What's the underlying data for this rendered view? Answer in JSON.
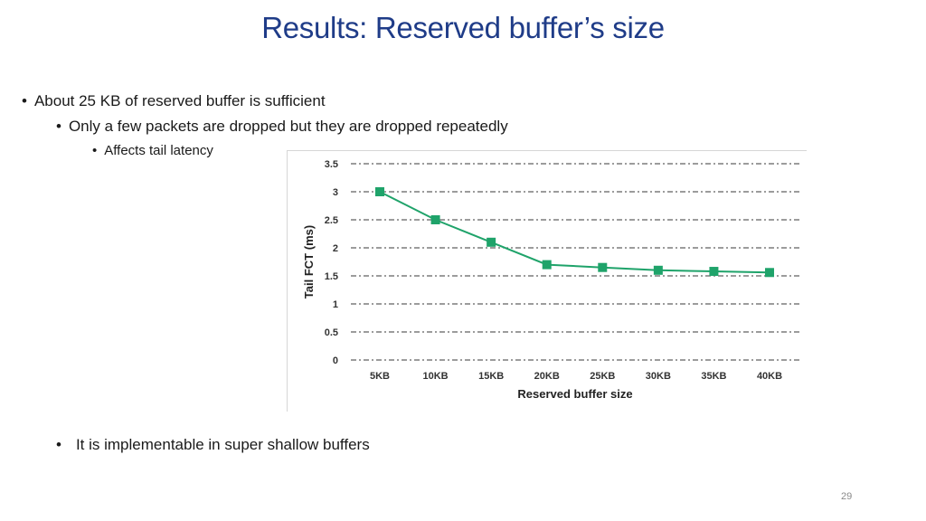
{
  "slide": {
    "title": "Results: Reserved buffer’s size",
    "page_number": "29"
  },
  "bullets": {
    "marker": "•",
    "level1": "About 25 KB of reserved buffer is sufficient",
    "level2": "Only a few packets are dropped but they are dropped repeatedly",
    "level3": "Affects tail latency",
    "bottom": "It is implementable in super shallow buffers"
  },
  "chart_data": {
    "type": "line",
    "categories": [
      "5KB",
      "10KB",
      "15KB",
      "20KB",
      "25KB",
      "30KB",
      "35KB",
      "40KB"
    ],
    "series": [
      {
        "values": [
          3.0,
          2.5,
          2.1,
          1.7,
          1.65,
          1.6,
          1.58,
          1.56
        ]
      }
    ],
    "xlabel": "Reserved buffer size",
    "ylabel": "Tail FCT (ms)",
    "ylim": [
      0,
      3.5
    ],
    "yticks": [
      0,
      0.5,
      1,
      1.5,
      2,
      2.5,
      3,
      3.5
    ],
    "ytick_labels": [
      "0",
      "0.5",
      "1",
      "1.5",
      "2",
      "2.5",
      "3",
      "3.5"
    ],
    "grid": true,
    "grid_style": "dash-dot",
    "marker": "square",
    "line_color": "#1fa36a",
    "marker_color": "#1fa36a"
  }
}
